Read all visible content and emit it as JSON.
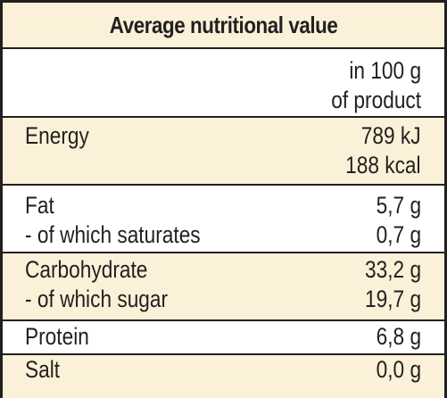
{
  "title": "Average nutritional value",
  "unit_header": [
    "in 100 g",
    "of product"
  ],
  "rows": [
    {
      "labels": [
        "Energy"
      ],
      "values": [
        "789 kJ",
        "188 kcal"
      ]
    },
    {
      "labels": [
        "Fat",
        "- of which saturates"
      ],
      "values": [
        "5,7 g",
        "0,7 g"
      ]
    },
    {
      "labels": [
        "Carbohydrate",
        "- of which sugar"
      ],
      "values": [
        "33,2 g",
        "19,7 g"
      ]
    },
    {
      "labels": [
        "Protein"
      ],
      "values": [
        "6,8 g"
      ]
    },
    {
      "labels": [
        "Salt"
      ],
      "values": [
        "0,0 g"
      ]
    }
  ],
  "colors": {
    "band": "#fbf1d8",
    "text": "#231f20",
    "border": "#231f20"
  }
}
